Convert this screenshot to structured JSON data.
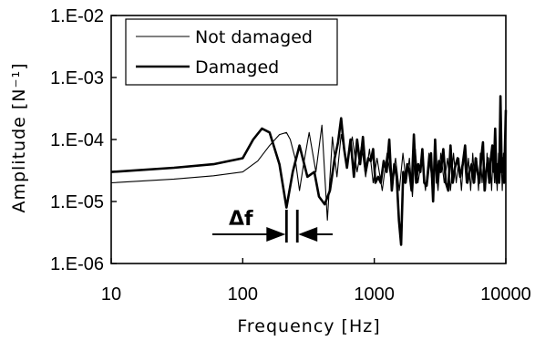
{
  "chart_data": {
    "type": "line",
    "xscale": "log",
    "yscale": "log",
    "xlim": [
      10,
      10000
    ],
    "ylim": [
      1e-06,
      0.01
    ],
    "xticks": [
      10,
      100,
      1000,
      10000
    ],
    "xtick_labels": [
      "10",
      "100",
      "1000",
      "10000"
    ],
    "yticks": [
      0.01,
      0.001,
      0.0001,
      1e-05,
      1e-06
    ],
    "ytick_labels": [
      "1.E-02",
      "1.E-03",
      "1.E-04",
      "1.E-05",
      "1.E-06"
    ],
    "xlabel": "Frequency [Hz]",
    "ylabel": "Amplitude [N⁻¹]",
    "grid": false,
    "legend": {
      "placement": "top-left",
      "entries": [
        "Not damaged",
        "Damaged"
      ]
    },
    "series": [
      {
        "name": "Not damaged",
        "line": "thin",
        "x": [
          10,
          30,
          60,
          100,
          130,
          160,
          190,
          215,
          230,
          250,
          270,
          290,
          320,
          360,
          400,
          440,
          480,
          520,
          560,
          620,
          680,
          740,
          800,
          860,
          920,
          980,
          1050,
          1150,
          1250,
          1350,
          1450,
          1550,
          1650,
          1750,
          1850,
          1950,
          2050,
          2150,
          2300,
          2450,
          2600,
          2750,
          2900,
          3050,
          3200,
          3400,
          3600,
          3800,
          4000,
          4200,
          4400,
          4600,
          4800,
          5000,
          5200,
          5400,
          5600,
          5800,
          6000,
          6200,
          6400,
          6600,
          6800,
          7000,
          7200,
          7400,
          7600,
          7800,
          8000,
          8200,
          8400,
          8600,
          8800,
          9000,
          9200,
          9400,
          9600,
          9800,
          10000
        ],
        "y": [
          2e-05,
          2.3e-05,
          2.6e-05,
          3e-05,
          4.5e-05,
          8e-05,
          0.00012,
          0.00013,
          0.0001,
          5e-05,
          1.5e-05,
          4e-05,
          0.00013,
          3e-05,
          0.00017,
          5e-06,
          0.00011,
          2.5e-05,
          0.00012,
          4e-05,
          0.00011,
          3e-05,
          8e-05,
          2.5e-05,
          7e-05,
          2e-05,
          5e-05,
          1.5e-05,
          6e-05,
          2e-05,
          5e-05,
          1.5e-05,
          6e-05,
          2e-05,
          5e-05,
          1.2e-05,
          7e-05,
          2e-05,
          5e-05,
          1.5e-05,
          6e-05,
          2e-05,
          5e-05,
          1.5e-05,
          6e-05,
          2e-05,
          5e-05,
          1.5e-05,
          6e-05,
          2e-05,
          5e-05,
          1.5e-05,
          6e-05,
          2e-05,
          5e-05,
          1.5e-05,
          6e-05,
          2e-05,
          5e-05,
          1.5e-05,
          6e-05,
          2e-05,
          5e-05,
          1.5e-05,
          6e-05,
          2e-05,
          5e-05,
          1.5e-05,
          6e-05,
          2e-05,
          5e-05,
          1.5e-05,
          6e-05,
          2e-05,
          5e-05,
          1.5e-05,
          6e-05,
          2e-05,
          3e-05
        ]
      },
      {
        "name": "Damaged",
        "line": "thick",
        "x": [
          10,
          30,
          60,
          100,
          120,
          140,
          160,
          190,
          215,
          240,
          270,
          310,
          350,
          380,
          420,
          460,
          500,
          530,
          560,
          590,
          620,
          660,
          700,
          740,
          780,
          820,
          860,
          900,
          940,
          980,
          1020,
          1070,
          1120,
          1180,
          1240,
          1300,
          1360,
          1420,
          1480,
          1540,
          1600,
          1660,
          1720,
          1780,
          1850,
          1920,
          2000,
          2080,
          2160,
          2240,
          2320,
          2400,
          2500,
          2600,
          2700,
          2800,
          2900,
          3000,
          3100,
          3200,
          3350,
          3500,
          3650,
          3800,
          3950,
          4100,
          4300,
          4500,
          4700,
          4900,
          5100,
          5300,
          5500,
          5700,
          5900,
          6100,
          6300,
          6500,
          6700,
          6900,
          7100,
          7300,
          7500,
          7700,
          7900,
          8100,
          8300,
          8500,
          8700,
          8900,
          9100,
          9300,
          9500,
          9700,
          10000
        ],
        "y": [
          3e-05,
          3.5e-05,
          4e-05,
          5e-05,
          0.0001,
          0.00015,
          0.00013,
          4e-05,
          8e-06,
          3e-05,
          8e-05,
          2.5e-05,
          3e-05,
          1.2e-05,
          9e-06,
          1.5e-05,
          5e-05,
          9e-05,
          0.00022,
          7e-05,
          3.5e-05,
          0.0001,
          2.5e-05,
          0.0001,
          4e-05,
          0.00011,
          3e-05,
          5e-05,
          4.5e-05,
          7e-05,
          2e-05,
          2.5e-05,
          2e-05,
          4.5e-05,
          3e-05,
          0.0001,
          1.5e-05,
          4e-05,
          2.5e-05,
          5e-06,
          2e-06,
          3e-05,
          2e-05,
          4e-05,
          3e-05,
          1.5e-05,
          0.00012,
          2e-05,
          4e-05,
          3e-05,
          7e-05,
          2e-05,
          1.8e-05,
          4e-05,
          6e-05,
          1e-05,
          0.0001,
          2e-05,
          4.5e-05,
          3e-05,
          7e-05,
          2e-05,
          1.5e-05,
          8e-05,
          2e-05,
          3.5e-05,
          5e-05,
          2.5e-05,
          4e-05,
          8e-05,
          2e-05,
          3e-05,
          4e-05,
          2e-05,
          5e-05,
          3e-05,
          2e-05,
          5e-05,
          9e-05,
          1.5e-05,
          3e-05,
          5e-05,
          2e-05,
          5e-05,
          8e-05,
          3e-05,
          0.00015,
          2e-05,
          4e-05,
          2e-05,
          0.0005,
          3e-05,
          5e-05,
          2e-05,
          0.0003
        ]
      }
    ],
    "annotations": [
      {
        "text": "Δf",
        "x_left": 215,
        "x_right": 260
      }
    ]
  }
}
